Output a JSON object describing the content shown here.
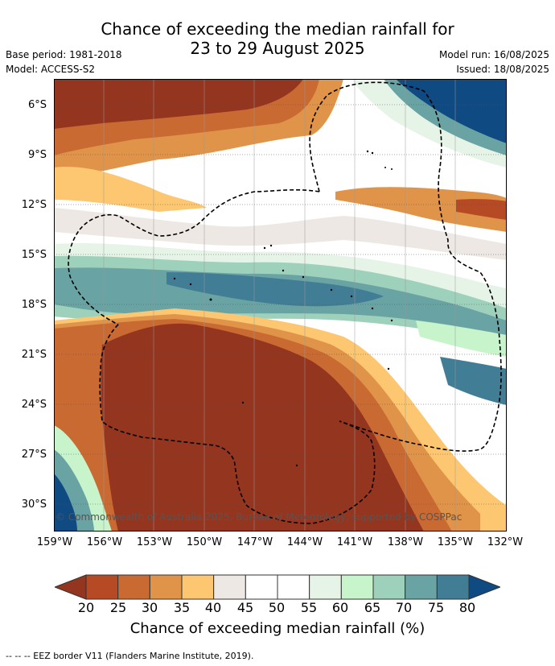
{
  "title": {
    "line1": "Chance of exceeding the median rainfall for",
    "line2": "23 to 29 August 2025"
  },
  "meta_left": {
    "base_period": "Base period: 1981-2018",
    "model": "Model: ACCESS-S2"
  },
  "meta_right": {
    "model_run": "Model run: 16/08/2025",
    "issued": "Issued: 18/08/2025"
  },
  "map": {
    "lat_labels": [
      "6°S",
      "9°S",
      "12°S",
      "15°S",
      "18°S",
      "21°S",
      "24°S",
      "27°S",
      "30°S"
    ],
    "lon_labels": [
      "159°W",
      "156°W",
      "153°W",
      "150°W",
      "147°W",
      "144°W",
      "141°W",
      "138°W",
      "135°W",
      "132°W"
    ],
    "copyright": "© Commonwealth of Australia 2025, Bureau of Meteorology, supported by COSPPac",
    "colors": {
      "c15": "#943520",
      "c20": "#b54a25",
      "c25": "#c96a33",
      "c30": "#df944a",
      "c35": "#fdc771",
      "c40": "#ede8e3",
      "c45": "#ffffff",
      "c55": "#e6f4e7",
      "c60": "#c8f4cc",
      "c65": "#9ed1bb",
      "c70": "#6aa3a3",
      "c75": "#427d96",
      "c80": "#0f4a82"
    }
  },
  "colorbar": {
    "ticks": [
      "20",
      "25",
      "30",
      "35",
      "40",
      "45",
      "50",
      "55",
      "60",
      "65",
      "70",
      "75",
      "80"
    ],
    "colors": [
      "#b54a25",
      "#c96a33",
      "#df944a",
      "#fdc771",
      "#ede8e3",
      "#ffffff",
      "#ffffff",
      "#e6f4e7",
      "#c8f4cc",
      "#9ed1bb",
      "#6aa3a3",
      "#427d96"
    ],
    "low_color": "#943520",
    "high_color": "#0f4a82",
    "label": "Chance of exceeding median rainfall (%)"
  },
  "footer": "--  --  -- EEZ border V11 (Flanders Marine Institute, 2019)."
}
